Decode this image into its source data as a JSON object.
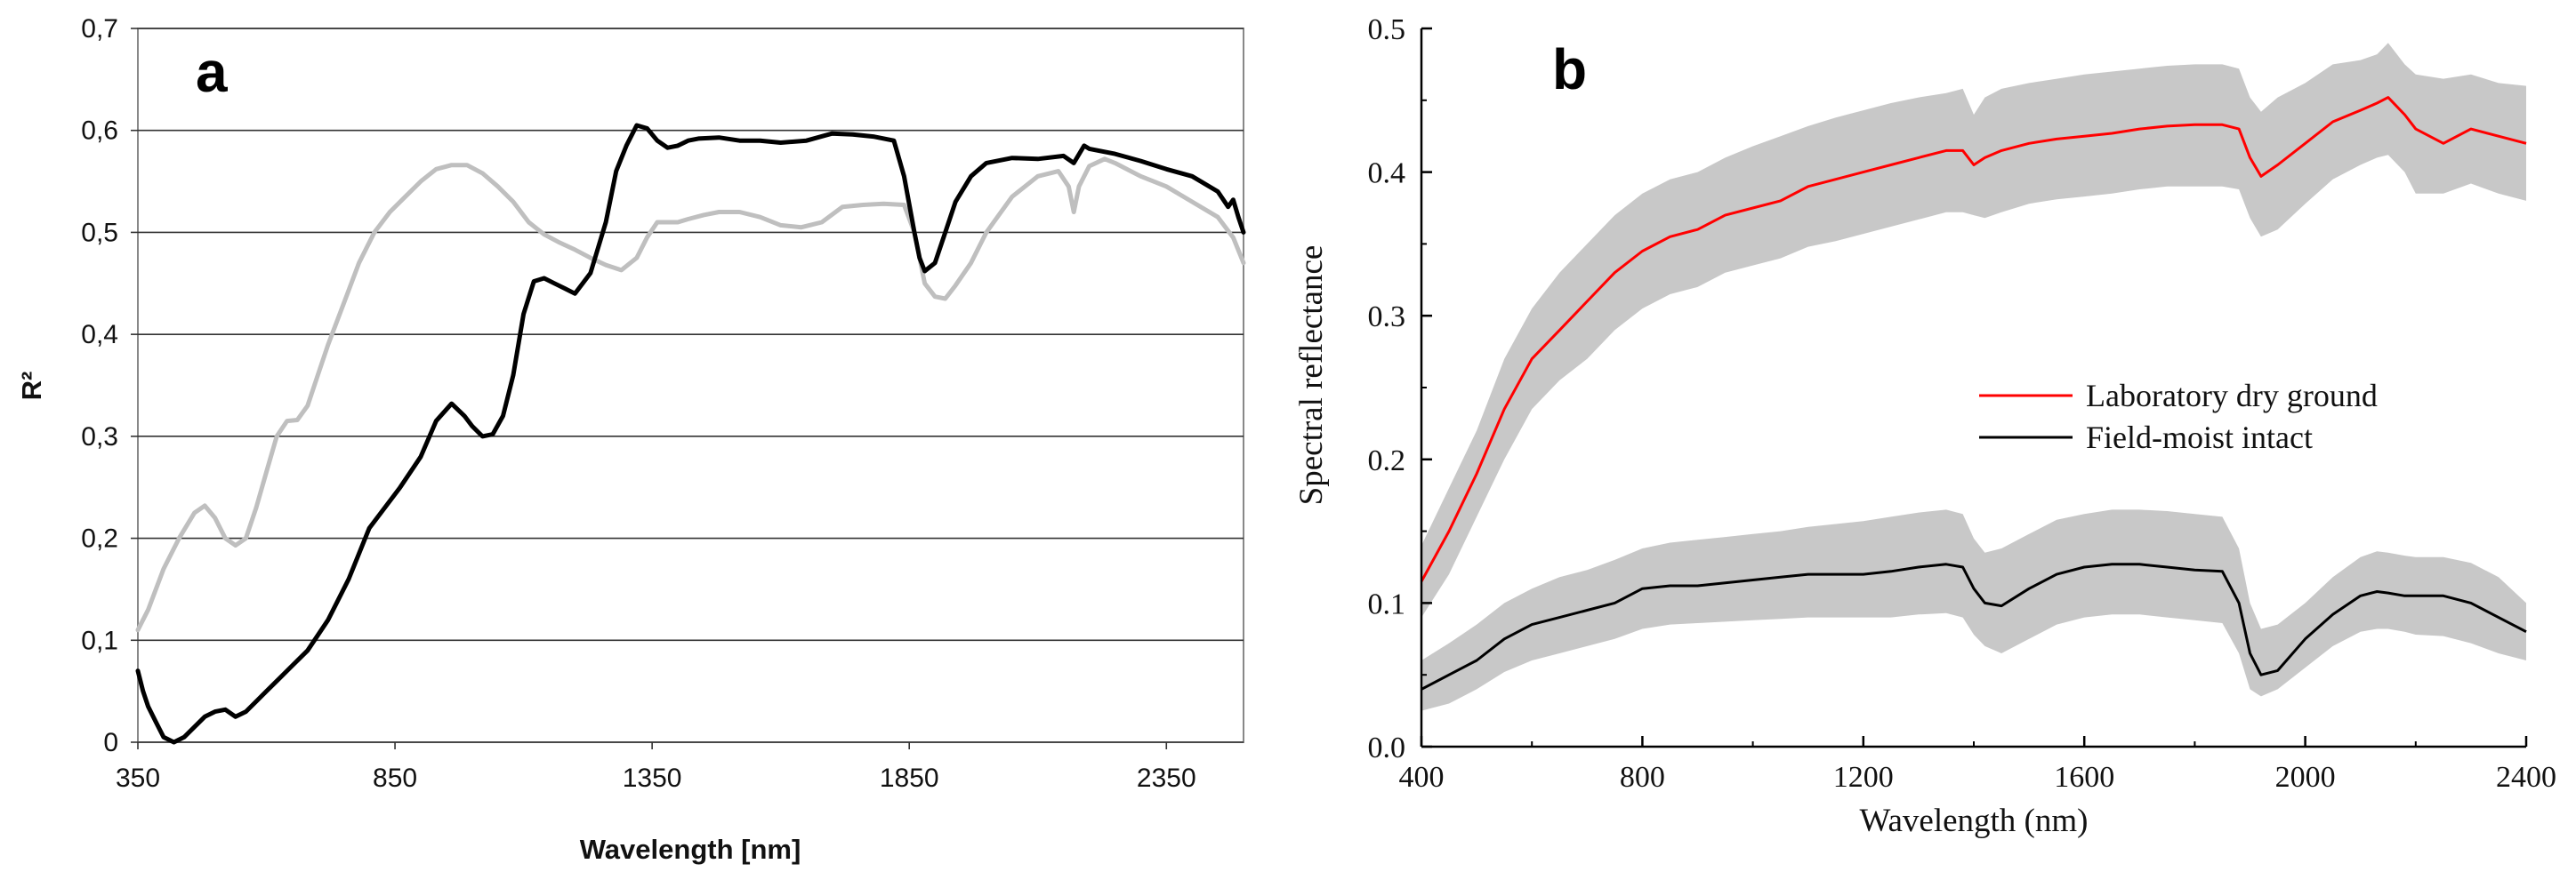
{
  "chart_data": [
    {
      "type": "line",
      "panel_label": "a",
      "title": "",
      "xlabel": "Wavelength [nm]",
      "ylabel": "R²",
      "xlim": [
        350,
        2500
      ],
      "ylim": [
        0,
        0.7
      ],
      "xticks": [
        350,
        850,
        1350,
        1850,
        2350
      ],
      "xtick_labels": [
        "350",
        "850",
        "1350",
        "1850",
        "2350"
      ],
      "yticks": [
        0,
        0.1,
        0.2,
        0.3,
        0.4,
        0.5,
        0.6,
        0.7
      ],
      "ytick_labels": [
        "0",
        "0,1",
        "0,2",
        "0,3",
        "0,4",
        "0,5",
        "0,6",
        "0,7"
      ],
      "grid": "horizontal",
      "series": [
        {
          "name": "black",
          "color": "#000000",
          "x": [
            350,
            360,
            370,
            385,
            400,
            420,
            440,
            460,
            480,
            500,
            520,
            540,
            560,
            580,
            600,
            620,
            650,
            680,
            720,
            760,
            800,
            830,
            860,
            900,
            930,
            960,
            985,
            1000,
            1020,
            1040,
            1060,
            1080,
            1100,
            1120,
            1140,
            1160,
            1180,
            1200,
            1230,
            1260,
            1280,
            1300,
            1320,
            1340,
            1360,
            1380,
            1400,
            1420,
            1440,
            1480,
            1520,
            1560,
            1600,
            1650,
            1700,
            1740,
            1780,
            1820,
            1840,
            1860,
            1870,
            1880,
            1900,
            1920,
            1940,
            1970,
            2000,
            2050,
            2100,
            2150,
            2170,
            2190,
            2200,
            2220,
            2250,
            2300,
            2350,
            2400,
            2450,
            2470,
            2480,
            2490,
            2500
          ],
          "values": [
            0.07,
            0.05,
            0.035,
            0.02,
            0.005,
            0.0,
            0.005,
            0.015,
            0.025,
            0.03,
            0.032,
            0.025,
            0.03,
            0.04,
            0.05,
            0.06,
            0.075,
            0.09,
            0.12,
            0.16,
            0.21,
            0.23,
            0.25,
            0.28,
            0.315,
            0.332,
            0.32,
            0.31,
            0.3,
            0.302,
            0.32,
            0.36,
            0.42,
            0.452,
            0.455,
            0.45,
            0.445,
            0.44,
            0.46,
            0.51,
            0.56,
            0.585,
            0.605,
            0.602,
            0.59,
            0.583,
            0.585,
            0.59,
            0.592,
            0.593,
            0.59,
            0.59,
            0.588,
            0.59,
            0.597,
            0.596,
            0.594,
            0.59,
            0.555,
            0.5,
            0.475,
            0.462,
            0.47,
            0.5,
            0.53,
            0.555,
            0.568,
            0.573,
            0.572,
            0.575,
            0.568,
            0.585,
            0.582,
            0.58,
            0.577,
            0.57,
            0.562,
            0.555,
            0.54,
            0.525,
            0.532,
            0.515,
            0.5
          ]
        },
        {
          "name": "gray",
          "color": "#bfbfbf",
          "x": [
            350,
            370,
            400,
            430,
            460,
            480,
            500,
            520,
            540,
            560,
            580,
            600,
            620,
            640,
            660,
            680,
            700,
            720,
            750,
            780,
            810,
            840,
            870,
            900,
            930,
            960,
            990,
            1020,
            1050,
            1080,
            1110,
            1140,
            1170,
            1200,
            1230,
            1260,
            1290,
            1320,
            1340,
            1360,
            1380,
            1400,
            1420,
            1450,
            1480,
            1520,
            1560,
            1600,
            1640,
            1680,
            1720,
            1760,
            1800,
            1840,
            1860,
            1880,
            1900,
            1920,
            1940,
            1970,
            2000,
            2050,
            2100,
            2140,
            2160,
            2170,
            2180,
            2200,
            2230,
            2250,
            2300,
            2350,
            2400,
            2450,
            2480,
            2500
          ],
          "values": [
            0.11,
            0.13,
            0.17,
            0.2,
            0.225,
            0.232,
            0.22,
            0.2,
            0.193,
            0.2,
            0.23,
            0.265,
            0.3,
            0.315,
            0.316,
            0.33,
            0.36,
            0.39,
            0.43,
            0.47,
            0.5,
            0.52,
            0.535,
            0.55,
            0.562,
            0.566,
            0.566,
            0.558,
            0.545,
            0.53,
            0.51,
            0.498,
            0.49,
            0.483,
            0.475,
            0.468,
            0.463,
            0.475,
            0.495,
            0.51,
            0.51,
            0.51,
            0.513,
            0.517,
            0.52,
            0.52,
            0.515,
            0.507,
            0.505,
            0.51,
            0.525,
            0.527,
            0.528,
            0.527,
            0.5,
            0.45,
            0.437,
            0.435,
            0.448,
            0.47,
            0.5,
            0.535,
            0.555,
            0.56,
            0.545,
            0.52,
            0.545,
            0.565,
            0.572,
            0.568,
            0.555,
            0.545,
            0.53,
            0.515,
            0.495,
            0.47
          ]
        }
      ]
    },
    {
      "type": "area",
      "panel_label": "b",
      "title": "",
      "xlabel": "Wavelength (nm)",
      "ylabel": "Spectral reflectance",
      "xlim": [
        400,
        2400
      ],
      "ylim": [
        0.0,
        0.5
      ],
      "xticks": [
        400,
        800,
        1200,
        1600,
        2000,
        2400
      ],
      "xtick_labels": [
        "400",
        "800",
        "1200",
        "1600",
        "2000",
        "2400"
      ],
      "yticks": [
        0.0,
        0.1,
        0.2,
        0.3,
        0.4,
        0.5
      ],
      "ytick_labels": [
        "0.0",
        "0.1",
        "0.2",
        "0.3",
        "0.4",
        "0.5"
      ],
      "grid": false,
      "legend_position": "center-right",
      "legend": [
        "Laboratory dry ground",
        "Field-moist intact"
      ],
      "x": [
        400,
        450,
        500,
        550,
        600,
        650,
        700,
        750,
        800,
        850,
        900,
        950,
        1000,
        1050,
        1100,
        1150,
        1200,
        1250,
        1300,
        1350,
        1380,
        1400,
        1420,
        1450,
        1500,
        1550,
        1600,
        1650,
        1700,
        1750,
        1800,
        1850,
        1880,
        1900,
        1920,
        1950,
        2000,
        2050,
        2100,
        2130,
        2150,
        2180,
        2200,
        2250,
        2300,
        2350,
        2400
      ],
      "series": [
        {
          "name": "Laboratory dry ground",
          "color": "#ff0000",
          "band_color": "#c8c8c8",
          "values": [
            0.115,
            0.15,
            0.19,
            0.235,
            0.27,
            0.29,
            0.31,
            0.33,
            0.345,
            0.355,
            0.36,
            0.37,
            0.375,
            0.38,
            0.39,
            0.395,
            0.4,
            0.405,
            0.41,
            0.415,
            0.415,
            0.405,
            0.41,
            0.415,
            0.42,
            0.423,
            0.425,
            0.427,
            0.43,
            0.432,
            0.433,
            0.433,
            0.43,
            0.41,
            0.397,
            0.405,
            0.42,
            0.435,
            0.443,
            0.448,
            0.452,
            0.44,
            0.43,
            0.42,
            0.43,
            0.425,
            0.42
          ],
          "upper": [
            0.14,
            0.18,
            0.22,
            0.27,
            0.305,
            0.33,
            0.35,
            0.37,
            0.385,
            0.395,
            0.4,
            0.41,
            0.418,
            0.425,
            0.432,
            0.438,
            0.443,
            0.448,
            0.452,
            0.455,
            0.458,
            0.44,
            0.452,
            0.458,
            0.462,
            0.465,
            0.468,
            0.47,
            0.472,
            0.474,
            0.475,
            0.475,
            0.472,
            0.452,
            0.442,
            0.452,
            0.462,
            0.475,
            0.478,
            0.482,
            0.49,
            0.475,
            0.468,
            0.465,
            0.468,
            0.462,
            0.46
          ],
          "lower": [
            0.09,
            0.12,
            0.16,
            0.2,
            0.235,
            0.255,
            0.27,
            0.29,
            0.305,
            0.315,
            0.32,
            0.33,
            0.335,
            0.34,
            0.348,
            0.352,
            0.357,
            0.362,
            0.367,
            0.372,
            0.372,
            0.37,
            0.368,
            0.372,
            0.378,
            0.381,
            0.383,
            0.385,
            0.388,
            0.39,
            0.39,
            0.39,
            0.388,
            0.368,
            0.355,
            0.36,
            0.378,
            0.395,
            0.405,
            0.41,
            0.412,
            0.4,
            0.385,
            0.385,
            0.392,
            0.385,
            0.38
          ]
        },
        {
          "name": "Field-moist intact",
          "color": "#000000",
          "band_color": "#c8c8c8",
          "values": [
            0.04,
            0.05,
            0.06,
            0.075,
            0.085,
            0.09,
            0.095,
            0.1,
            0.11,
            0.112,
            0.112,
            0.114,
            0.116,
            0.118,
            0.12,
            0.12,
            0.12,
            0.122,
            0.125,
            0.127,
            0.125,
            0.11,
            0.1,
            0.098,
            0.11,
            0.12,
            0.125,
            0.127,
            0.127,
            0.125,
            0.123,
            0.122,
            0.1,
            0.065,
            0.05,
            0.053,
            0.075,
            0.092,
            0.105,
            0.108,
            0.107,
            0.105,
            0.105,
            0.105,
            0.1,
            0.09,
            0.08
          ],
          "upper": [
            0.06,
            0.072,
            0.085,
            0.1,
            0.11,
            0.118,
            0.123,
            0.13,
            0.138,
            0.142,
            0.144,
            0.146,
            0.148,
            0.15,
            0.153,
            0.155,
            0.157,
            0.16,
            0.163,
            0.165,
            0.162,
            0.145,
            0.135,
            0.138,
            0.148,
            0.158,
            0.162,
            0.165,
            0.165,
            0.164,
            0.162,
            0.16,
            0.138,
            0.1,
            0.082,
            0.085,
            0.1,
            0.118,
            0.132,
            0.136,
            0.135,
            0.133,
            0.132,
            0.132,
            0.128,
            0.118,
            0.1
          ],
          "lower": [
            0.025,
            0.03,
            0.04,
            0.052,
            0.06,
            0.065,
            0.07,
            0.075,
            0.082,
            0.085,
            0.086,
            0.087,
            0.088,
            0.089,
            0.09,
            0.09,
            0.09,
            0.09,
            0.092,
            0.093,
            0.09,
            0.078,
            0.07,
            0.065,
            0.075,
            0.085,
            0.09,
            0.092,
            0.092,
            0.09,
            0.088,
            0.086,
            0.065,
            0.04,
            0.035,
            0.04,
            0.055,
            0.07,
            0.08,
            0.082,
            0.082,
            0.08,
            0.078,
            0.077,
            0.072,
            0.065,
            0.06
          ]
        }
      ]
    }
  ]
}
